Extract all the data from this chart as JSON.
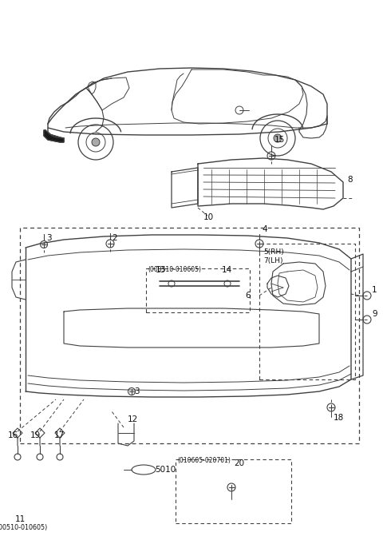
{
  "background_color": "#ffffff",
  "line_color": "#404040",
  "text_color": "#111111",
  "fig_width": 4.8,
  "fig_height": 6.91,
  "dpi": 100
}
